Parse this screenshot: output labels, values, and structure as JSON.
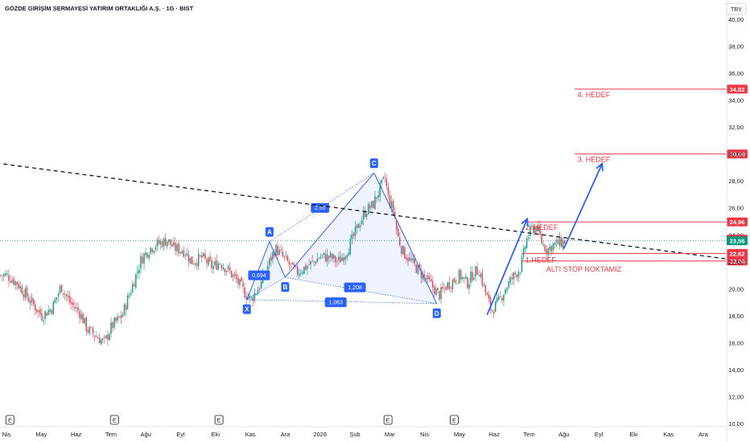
{
  "chart_data": {
    "type": "candlestick",
    "title": "GÖZDE GİRİŞİM SERMAYESİ YATIRIM ORTAKLIĞI A.Ş. · 1G · BIST",
    "currency": "TRY",
    "y_ticks": [
      "40,00",
      "38,00",
      "36,00",
      "34,00",
      "32,00",
      "30,00",
      "28,00",
      "26,00",
      "24,00",
      "22,00",
      "20,00",
      "18,00",
      "16,00",
      "14,00",
      "12,00",
      "10,00"
    ],
    "y_tick_values": [
      40,
      38,
      36,
      34,
      32,
      30,
      28,
      26,
      24,
      22,
      20,
      18,
      16,
      14,
      12,
      10
    ],
    "ylim": [
      10,
      40
    ],
    "x_labels": [
      "Nis",
      "May",
      "Haz",
      "Tem",
      "Ağu",
      "Eyl",
      "Eki",
      "Kas",
      "Ara",
      "2026",
      "Şub",
      "Mar",
      "Nis",
      "May",
      "Haz",
      "Tem",
      "Ağu",
      "Eyl",
      "Eki",
      "Kas",
      "Ara"
    ],
    "x_label_months": [
      0,
      1,
      2,
      3,
      4,
      5,
      6,
      7,
      8,
      9,
      10,
      11,
      12,
      13,
      14,
      15,
      16,
      17,
      18,
      19,
      20
    ],
    "earnings_marker": "E",
    "earnings_months": [
      0.1,
      3.1,
      6.1,
      10.95,
      12.85
    ],
    "price_path": [
      {
        "m": 0.0,
        "p": 21.0
      },
      {
        "m": 0.3,
        "p": 20.4
      },
      {
        "m": 0.7,
        "p": 19.0
      },
      {
        "m": 1.0,
        "p": 18.0
      },
      {
        "m": 1.3,
        "p": 18.6
      },
      {
        "m": 1.55,
        "p": 20.2
      },
      {
        "m": 1.8,
        "p": 19.0
      },
      {
        "m": 2.1,
        "p": 18.2
      },
      {
        "m": 2.3,
        "p": 17.0
      },
      {
        "m": 2.6,
        "p": 16.4
      },
      {
        "m": 2.8,
        "p": 16.0
      },
      {
        "m": 3.0,
        "p": 17.2
      },
      {
        "m": 3.3,
        "p": 18.0
      },
      {
        "m": 3.5,
        "p": 19.5
      },
      {
        "m": 3.7,
        "p": 21.0
      },
      {
        "m": 3.85,
        "p": 22.2
      },
      {
        "m": 4.1,
        "p": 23.0
      },
      {
        "m": 4.3,
        "p": 23.3
      },
      {
        "m": 4.6,
        "p": 23.6
      },
      {
        "m": 4.8,
        "p": 23.0
      },
      {
        "m": 5.1,
        "p": 22.8
      },
      {
        "m": 5.3,
        "p": 22.0
      },
      {
        "m": 5.6,
        "p": 22.3
      },
      {
        "m": 5.9,
        "p": 21.6
      },
      {
        "m": 6.1,
        "p": 22.0
      },
      {
        "m": 6.3,
        "p": 21.5
      },
      {
        "m": 6.6,
        "p": 20.6
      },
      {
        "m": 6.85,
        "p": 19.6
      },
      {
        "m": 7.0,
        "p": 19.2
      },
      {
        "m": 7.3,
        "p": 20.4
      },
      {
        "m": 7.5,
        "p": 21.8
      },
      {
        "m": 7.7,
        "p": 23.0
      },
      {
        "m": 7.9,
        "p": 22.4
      },
      {
        "m": 8.1,
        "p": 21.8
      },
      {
        "m": 8.3,
        "p": 21.2
      },
      {
        "m": 8.5,
        "p": 21.5
      },
      {
        "m": 8.8,
        "p": 22.0
      },
      {
        "m": 9.0,
        "p": 22.4
      },
      {
        "m": 9.3,
        "p": 22.3
      },
      {
        "m": 9.5,
        "p": 22.0
      },
      {
        "m": 9.7,
        "p": 22.6
      },
      {
        "m": 9.9,
        "p": 23.6
      },
      {
        "m": 10.1,
        "p": 24.8
      },
      {
        "m": 10.3,
        "p": 25.8
      },
      {
        "m": 10.5,
        "p": 26.2
      },
      {
        "m": 10.7,
        "p": 27.4
      },
      {
        "m": 10.85,
        "p": 28.2
      },
      {
        "m": 10.95,
        "p": 26.6
      },
      {
        "m": 11.1,
        "p": 25.8
      },
      {
        "m": 11.2,
        "p": 24.0
      },
      {
        "m": 11.35,
        "p": 22.8
      },
      {
        "m": 11.6,
        "p": 22.0
      },
      {
        "m": 11.8,
        "p": 21.4
      },
      {
        "m": 12.0,
        "p": 20.8
      },
      {
        "m": 12.2,
        "p": 20.2
      },
      {
        "m": 12.4,
        "p": 19.5
      },
      {
        "m": 12.6,
        "p": 20.2
      },
      {
        "m": 12.8,
        "p": 20.6
      },
      {
        "m": 13.0,
        "p": 21.0
      },
      {
        "m": 13.2,
        "p": 20.4
      },
      {
        "m": 13.4,
        "p": 21.2
      },
      {
        "m": 13.55,
        "p": 21.4
      },
      {
        "m": 13.7,
        "p": 20.0
      },
      {
        "m": 13.9,
        "p": 18.4
      },
      {
        "m": 14.1,
        "p": 19.0
      },
      {
        "m": 14.3,
        "p": 20.0
      },
      {
        "m": 14.5,
        "p": 20.8
      },
      {
        "m": 14.75,
        "p": 21.6
      },
      {
        "m": 14.9,
        "p": 23.6
      },
      {
        "m": 15.05,
        "p": 24.4
      },
      {
        "m": 15.2,
        "p": 24.6
      },
      {
        "m": 15.35,
        "p": 23.4
      },
      {
        "m": 15.5,
        "p": 22.9
      },
      {
        "m": 15.7,
        "p": 23.3
      },
      {
        "m": 15.9,
        "p": 23.4
      },
      {
        "m": 16.05,
        "p": 23.56
      }
    ],
    "harmonic_pattern": {
      "points": [
        {
          "label": "X",
          "m": 6.9,
          "p": 19.2
        },
        {
          "label": "A",
          "m": 7.55,
          "p": 23.5
        },
        {
          "label": "B",
          "m": 8.0,
          "p": 20.85
        },
        {
          "label": "C",
          "m": 10.55,
          "p": 28.6
        },
        {
          "label": "D",
          "m": 12.35,
          "p": 18.9
        }
      ],
      "ratios": [
        {
          "label": "0,694",
          "m": 7.25,
          "p": 21.0
        },
        {
          "label": "2,55",
          "m": 9.0,
          "p": 26.0
        },
        {
          "label": "1,208",
          "m": 10.0,
          "p": 20.1
        },
        {
          "label": "1,063",
          "m": 9.45,
          "p": 19.0
        }
      ]
    },
    "trendline": {
      "start": {
        "m": -0.5,
        "p": 29.4
      },
      "end": {
        "m": 21.3,
        "p": 22.0
      }
    },
    "arrows": [
      {
        "from": {
          "m": 13.8,
          "p": 18.1
        },
        "to": {
          "m": 14.95,
          "p": 25.2
        }
      },
      {
        "from": {
          "m": 16.0,
          "p": 23.0
        },
        "to": {
          "m": 17.1,
          "p": 29.3
        }
      }
    ],
    "target_lines": [
      {
        "label": "4. HEDEF",
        "value": 34.82,
        "price_label": "34,82",
        "m0": 16.3
      },
      {
        "label": "3. HEDEF",
        "value": 30.0,
        "price_label": "30,00",
        "m0": 16.3
      },
      {
        "label": "2. HEDEF",
        "value": 24.96,
        "price_label": "24,96",
        "m0": 14.8
      },
      {
        "label": "1.HEDEF",
        "value": 22.62,
        "price_label": "22,62",
        "m0": 14.8
      },
      {
        "label": "ALTI STOP NOKTAMIZ",
        "value": 22.06,
        "price_label": "22,06",
        "m0": 14.8
      }
    ],
    "price_badges": [
      {
        "value": 23.68,
        "label": "23,68",
        "color": "#f23645"
      },
      {
        "value": 23.56,
        "label": "23,56",
        "color": "#089981"
      }
    ],
    "current_price": 23.56
  }
}
